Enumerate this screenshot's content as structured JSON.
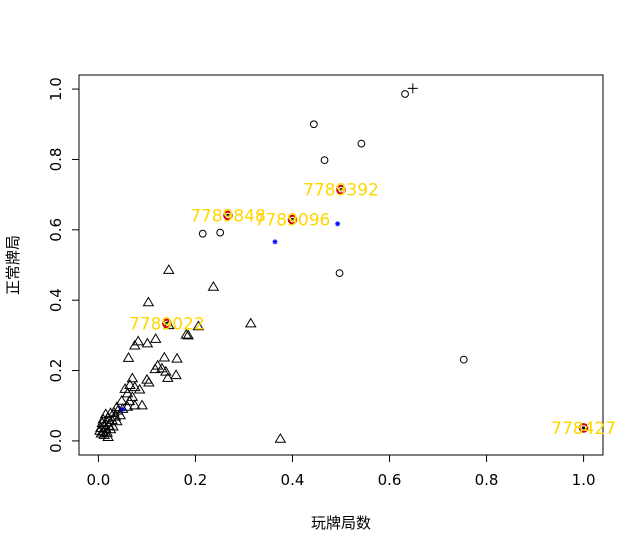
{
  "chart_data": {
    "type": "scatter",
    "title": "",
    "xlabel": "玩牌局数",
    "ylabel": "正常牌局",
    "xlim": [
      -0.04,
      1.04
    ],
    "ylim": [
      -0.04,
      1.04
    ],
    "x_ticks": [
      0.0,
      0.2,
      0.4,
      0.6,
      0.8,
      1.0
    ],
    "y_ticks": [
      0.0,
      0.2,
      0.4,
      0.6,
      0.8,
      1.0
    ],
    "x_tick_labels": [
      "0.0",
      "0.2",
      "0.4",
      "0.6",
      "0.8",
      "1.0"
    ],
    "y_tick_labels": [
      "0.0",
      "0.2",
      "0.4",
      "0.6",
      "0.8",
      "1.0"
    ],
    "grid": false,
    "colors": {
      "points": "#000000",
      "highlight": "#cc0000",
      "annotation": "#ffd700",
      "center": "#0000ff"
    },
    "series": [
      {
        "marker": "circle",
        "points": [
          [
            0.632,
            0.986
          ],
          [
            0.444,
            0.9
          ],
          [
            0.466,
            0.798
          ],
          [
            0.542,
            0.845
          ],
          [
            0.215,
            0.589
          ],
          [
            0.251,
            0.592
          ],
          [
            0.497,
            0.477
          ],
          [
            0.753,
            0.231
          ]
        ]
      },
      {
        "marker": "triangle",
        "points": [
          [
            0.145,
            0.485
          ],
          [
            0.237,
            0.437
          ],
          [
            0.103,
            0.393
          ],
          [
            0.314,
            0.333
          ],
          [
            0.206,
            0.325
          ],
          [
            0.145,
            0.328
          ],
          [
            0.181,
            0.301
          ],
          [
            0.185,
            0.299
          ],
          [
            0.118,
            0.289
          ],
          [
            0.082,
            0.282
          ],
          [
            0.101,
            0.276
          ],
          [
            0.075,
            0.27
          ],
          [
            0.062,
            0.235
          ],
          [
            0.136,
            0.236
          ],
          [
            0.162,
            0.233
          ],
          [
            0.122,
            0.213
          ],
          [
            0.131,
            0.205
          ],
          [
            0.117,
            0.203
          ],
          [
            0.139,
            0.196
          ],
          [
            0.16,
            0.186
          ],
          [
            0.143,
            0.178
          ],
          [
            0.07,
            0.177
          ],
          [
            0.1,
            0.173
          ],
          [
            0.104,
            0.165
          ],
          [
            0.065,
            0.158
          ],
          [
            0.075,
            0.152
          ],
          [
            0.085,
            0.145
          ],
          [
            0.055,
            0.147
          ],
          [
            0.06,
            0.134
          ],
          [
            0.07,
            0.124
          ],
          [
            0.048,
            0.113
          ],
          [
            0.064,
            0.112
          ],
          [
            0.09,
            0.1
          ],
          [
            0.075,
            0.1
          ],
          [
            0.06,
            0.096
          ],
          [
            0.038,
            0.095
          ],
          [
            0.05,
            0.09
          ],
          [
            0.04,
            0.085
          ],
          [
            0.032,
            0.08
          ],
          [
            0.025,
            0.078
          ],
          [
            0.015,
            0.075
          ],
          [
            0.045,
            0.072
          ],
          [
            0.035,
            0.068
          ],
          [
            0.02,
            0.065
          ],
          [
            0.01,
            0.06
          ],
          [
            0.028,
            0.058
          ],
          [
            0.038,
            0.055
          ],
          [
            0.018,
            0.052
          ],
          [
            0.008,
            0.05
          ],
          [
            0.012,
            0.045
          ],
          [
            0.022,
            0.042
          ],
          [
            0.03,
            0.04
          ],
          [
            0.005,
            0.036
          ],
          [
            0.015,
            0.034
          ],
          [
            0.025,
            0.032
          ],
          [
            0.003,
            0.028
          ],
          [
            0.01,
            0.025
          ],
          [
            0.018,
            0.022
          ],
          [
            0.006,
            0.02
          ],
          [
            0.012,
            0.016
          ],
          [
            0.375,
            0.005
          ],
          [
            0.02,
            0.01
          ]
        ]
      },
      {
        "marker": "plus",
        "points": [
          [
            0.648,
            1.002
          ]
        ]
      }
    ],
    "highlighted": [
      {
        "label": "7789392",
        "x": 0.5,
        "y": 0.714
      },
      {
        "label": "7789848",
        "x": 0.267,
        "y": 0.641
      },
      {
        "label": "7789096",
        "x": 0.4,
        "y": 0.629
      },
      {
        "label": "7789022",
        "x": 0.141,
        "y": 0.334
      },
      {
        "label": "778427",
        "x": 1.0,
        "y": 0.037
      }
    ],
    "centers": [
      [
        0.364,
        0.566
      ],
      [
        0.493,
        0.617
      ],
      [
        0.05,
        0.09
      ]
    ]
  }
}
